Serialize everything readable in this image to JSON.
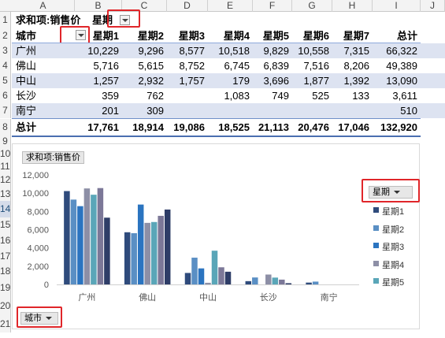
{
  "columns": [
    "A",
    "B",
    "C",
    "D",
    "E",
    "F",
    "G",
    "H",
    "I",
    "J"
  ],
  "rows": [
    "1",
    "2",
    "3",
    "4",
    "5",
    "6",
    "7",
    "8",
    "9",
    "10",
    "11",
    "12",
    "13",
    "14",
    "15",
    "16",
    "17",
    "18",
    "19",
    "20",
    "21"
  ],
  "pivot": {
    "filter_label": "求和项:销售价",
    "col_field": "星期",
    "row_field": "城市",
    "col_headers": [
      "星期1",
      "星期2",
      "星期3",
      "星期4",
      "星期5",
      "星期6",
      "星期7",
      "总计"
    ],
    "data_rows": [
      {
        "city": "广州",
        "values": [
          "10,229",
          "9,296",
          "8,577",
          "10,518",
          "9,829",
          "10,558",
          "7,315",
          "66,322"
        ]
      },
      {
        "city": "佛山",
        "values": [
          "5,716",
          "5,615",
          "8,752",
          "6,745",
          "6,839",
          "7,516",
          "8,206",
          "49,389"
        ]
      },
      {
        "city": "中山",
        "values": [
          "1,257",
          "2,932",
          "1,757",
          "179",
          "3,696",
          "1,877",
          "1,392",
          "13,090"
        ]
      },
      {
        "city": "长沙",
        "values": [
          "359",
          "762",
          "",
          "1,083",
          "749",
          "525",
          "133",
          "3,611"
        ]
      },
      {
        "city": "南宁",
        "values": [
          "201",
          "309",
          "",
          "",
          "",
          "",
          "",
          "510"
        ]
      }
    ],
    "total_label": "总计",
    "total_values": [
      "17,761",
      "18,914",
      "19,086",
      "18,525",
      "21,113",
      "20,476",
      "17,046",
      "132,920"
    ]
  },
  "chart": {
    "value_field_button": "求和项:销售价",
    "legend_field_button": "星期",
    "axis_field_button": "城市",
    "legend_visible": [
      "星期1",
      "星期2",
      "星期3",
      "星期4",
      "星期5"
    ]
  },
  "colors": {
    "series": [
      "#2f4b7c",
      "#5a8fc4",
      "#2b74c0",
      "#8d8fa6",
      "#5aa6b8",
      "#7c7898",
      "#2e3d67"
    ],
    "band": "#dde3f1",
    "highlight": "#e0262a"
  },
  "chart_data": {
    "type": "bar",
    "categories": [
      "广州",
      "佛山",
      "中山",
      "长沙",
      "南宁"
    ],
    "series": [
      {
        "name": "星期1",
        "values": [
          10229,
          5716,
          1257,
          359,
          201
        ]
      },
      {
        "name": "星期2",
        "values": [
          9296,
          5615,
          2932,
          762,
          309
        ]
      },
      {
        "name": "星期3",
        "values": [
          8577,
          8752,
          1757,
          0,
          0
        ]
      },
      {
        "name": "星期4",
        "values": [
          10518,
          6745,
          179,
          1083,
          0
        ]
      },
      {
        "name": "星期5",
        "values": [
          9829,
          6839,
          3696,
          749,
          0
        ]
      },
      {
        "name": "星期6",
        "values": [
          10558,
          7516,
          1877,
          525,
          0
        ]
      },
      {
        "name": "星期7",
        "values": [
          7315,
          8206,
          1392,
          133,
          0
        ]
      }
    ],
    "yticks": [
      "0",
      "2,000",
      "4,000",
      "6,000",
      "8,000",
      "10,000",
      "12,000"
    ],
    "ylim": [
      0,
      12000
    ],
    "grid": false,
    "legend": "right"
  }
}
